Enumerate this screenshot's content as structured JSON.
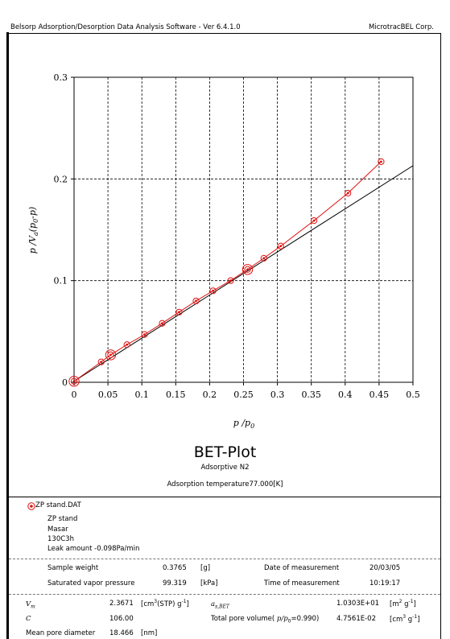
{
  "header": {
    "app_title": "Belsorp Adsorption/Desorption Data Analysis Software - Ver 6.4.1.0",
    "company": "MicrotracBEL Corp."
  },
  "chart_data": {
    "type": "scatter",
    "title": "BET-Plot",
    "subtitle_adsorptive": "Adsorptive N2",
    "subtitle_temperature": "Adsorption temperature77.000[K]",
    "xlabel": "p /p0",
    "ylabel": "p /Va(p0-p)",
    "xlim": [
      0,
      0.5
    ],
    "ylim": [
      0,
      0.3
    ],
    "x_ticks": [
      "0",
      "0.05",
      "0.1",
      "0.15",
      "0.2",
      "0.25",
      "0.3",
      "0.35",
      "0.4",
      "0.45",
      "0.5"
    ],
    "y_ticks": [
      "0",
      "0.1",
      "0.2",
      "0.3"
    ],
    "grid": true,
    "series": [
      {
        "name": "ZP stand.DAT",
        "color": "#e01010",
        "marker": "circle-dot",
        "x": [
          0.0,
          0.04,
          0.054,
          0.078,
          0.104,
          0.13,
          0.155,
          0.18,
          0.205,
          0.231,
          0.256,
          0.28,
          0.305,
          0.354,
          0.404,
          0.453
        ],
        "y": [
          0.001,
          0.02,
          0.027,
          0.037,
          0.047,
          0.058,
          0.069,
          0.08,
          0.09,
          0.1,
          0.111,
          0.122,
          0.134,
          0.159,
          0.186,
          0.217
        ]
      }
    ],
    "highlight_points": [
      {
        "x": 0.0,
        "y": 0.001
      },
      {
        "x": 0.054,
        "y": 0.027
      },
      {
        "x": 0.256,
        "y": 0.111
      }
    ],
    "fit_line": {
      "color": "#000000",
      "x": [
        0.0,
        0.5
      ],
      "y": [
        0.001,
        0.213
      ]
    }
  },
  "legend": {
    "file_name": "ZP stand.DAT",
    "sample_lines": [
      "ZP stand",
      "Masar",
      "130C3h",
      "Leak amount -0.098Pa/min"
    ]
  },
  "measurement": {
    "sample_weight_label": "Sample weight",
    "sample_weight_value": "0.3765",
    "sample_weight_unit": "[g]",
    "date_label": "Date of measurement",
    "date_value": "20/03/05",
    "svp_label": "Saturated vapor pressure",
    "svp_value": "99.319",
    "svp_unit": "[kPa]",
    "time_label": "Time of measurement",
    "time_value": "10:19:17"
  },
  "results": {
    "vm_label": "V",
    "vm_sub": "m",
    "vm_value": "2.3671",
    "vm_unit_a": "[cm",
    "vm_unit_sup": "3",
    "vm_unit_b": "(STP) g",
    "vm_unit_sup2": "-1",
    "vm_unit_c": "]",
    "as_label": "a",
    "as_sub": "s,BET",
    "as_value": "1.0303E+01",
    "as_unit_a": "[m",
    "as_unit_sup": "2",
    "as_unit_b": " g",
    "as_unit_sup2": "-1",
    "as_unit_c": "]",
    "c_label": "C",
    "c_value": "106.00",
    "tpv_label_a": "Total pore volume(",
    "tpv_label_b": "p/p",
    "tpv_label_sub": "0",
    "tpv_label_c": "=0.990)",
    "tpv_value": "4.7561E-02",
    "tpv_unit_a": "[cm",
    "tpv_unit_sup": "3",
    "tpv_unit_b": " g",
    "tpv_unit_sup2": "-1",
    "tpv_unit_c": "]",
    "mpd_label": "Mean pore diameter",
    "mpd_value": "18.466",
    "mpd_unit": "[nm]"
  }
}
